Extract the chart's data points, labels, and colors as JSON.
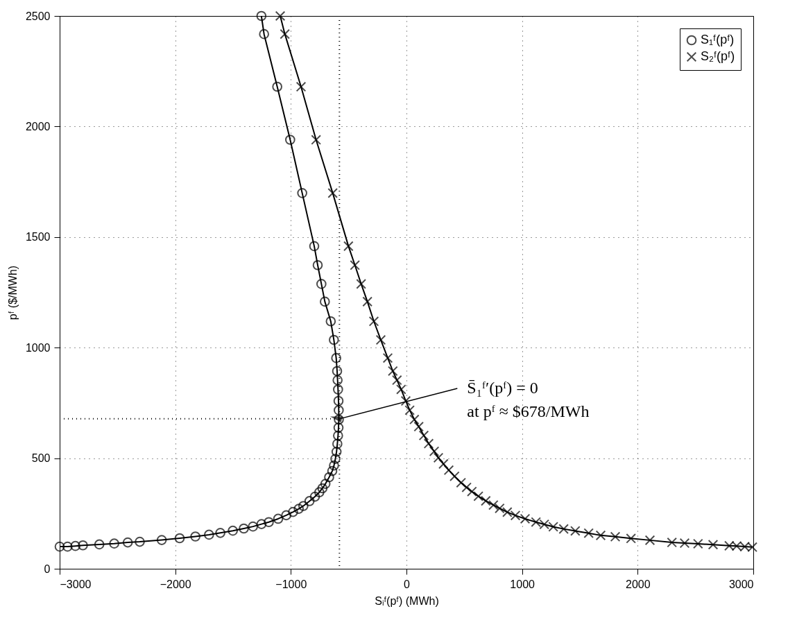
{
  "chart_data": {
    "type": "line",
    "xlabel": "Sᵢᶠ(pᶠ)   (MWh)",
    "ylabel": "pᶠ   ($/MWh)",
    "xlim": [
      -3000,
      3000
    ],
    "ylim": [
      0,
      2500
    ],
    "xticks": [
      -3000,
      -2000,
      -1000,
      0,
      1000,
      2000,
      3000
    ],
    "yticks": [
      0,
      500,
      1000,
      1500,
      2000,
      2500
    ],
    "grid": true,
    "legend": "top right",
    "series": [
      {
        "name": "S₁ᶠ(pᶠ)",
        "color": "#000000",
        "marker": "circle",
        "x": [
          -3000,
          -2932,
          -2864,
          -2799,
          -2657,
          -2528,
          -2411,
          -2307,
          -2117,
          -1962,
          -1826,
          -1708,
          -1610,
          -1502,
          -1407,
          -1328,
          -1254,
          -1191,
          -1110,
          -1040,
          -981,
          -932,
          -892,
          -839,
          -792,
          -754,
          -727,
          -701,
          -669,
          -642,
          -627,
          -615,
          -605,
          -598,
          -592,
          -588,
          -585,
          -586,
          -588,
          -592,
          -596,
          -600,
          -608,
          -628,
          -655,
          -706,
          -736,
          -768,
          -798,
          -902,
          -1006,
          -1118,
          -1232,
          -1255
        ],
        "values": [
          100,
          100,
          103,
          106,
          110,
          114,
          119,
          122,
          130,
          138,
          146,
          154,
          162,
          172,
          182,
          191,
          202,
          211,
          226,
          242,
          257,
          271,
          284,
          306,
          326,
          346,
          364,
          384,
          414,
          442,
          467,
          497,
          529,
          565,
          602,
          638,
          675,
          717,
          759,
          811,
          853,
          894,
          953,
          1035,
          1119,
          1208,
          1288,
          1373,
          1459,
          1699,
          1940,
          2180,
          2418,
          2500
        ]
      },
      {
        "name": "S₂ᶠ(pᶠ)",
        "color": "#000000",
        "marker": "cross",
        "x": [
          2992,
          2926,
          2856,
          2792,
          2652,
          2522,
          2406,
          2296,
          2106,
          1942,
          1806,
          1680,
          1576,
          1460,
          1360,
          1270,
          1192,
          1120,
          1026,
          942,
          872,
          806,
          752,
          686,
          622,
          566,
          520,
          472,
          416,
          366,
          320,
          276,
          240,
          192,
          150,
          106,
          68,
          28,
          -6,
          -46,
          -82,
          -118,
          -162,
          -222,
          -282,
          -338,
          -392,
          -446,
          -502,
          -638,
          -782,
          -912,
          -1052,
          -1092
        ],
        "values": [
          98,
          100,
          103,
          104,
          109,
          113,
          116,
          119,
          129,
          137,
          145,
          151,
          161,
          171,
          180,
          190,
          201,
          211,
          226,
          241,
          256,
          273,
          288,
          307,
          328,
          349,
          368,
          389,
          418,
          446,
          474,
          502,
          531,
          566,
          603,
          643,
          675,
          717,
          759,
          811,
          853,
          894,
          953,
          1035,
          1119,
          1208,
          1288,
          1373,
          1459,
          1699,
          1940,
          2180,
          2418,
          2500
        ]
      }
    ],
    "ref_lines": [
      {
        "axis": "x",
        "value": -580,
        "line_style": "dotted"
      },
      {
        "axis": "y",
        "value": 678,
        "line_style": "dotted"
      }
    ],
    "annotations": [
      {
        "text": "S̄₁ᶠ′(pᶠ) = 0\nat  pᶠ ≈ $678/MWh",
        "x": -580,
        "y": 678
      }
    ]
  }
}
